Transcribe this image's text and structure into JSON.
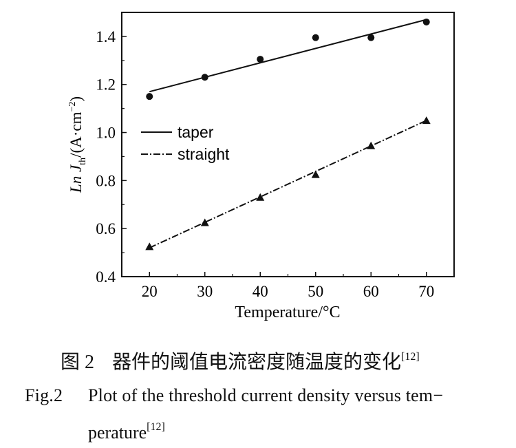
{
  "chart_data": {
    "type": "line",
    "xlabel": "Temperature/°C",
    "ylabel_main": "Ln J",
    "ylabel_sub": "th",
    "ylabel_rest": "/(A·cm",
    "ylabel_sup": "−2",
    "ylabel_close": ")",
    "xlim": [
      15,
      75
    ],
    "ylim": [
      0.4,
      1.5
    ],
    "xticks": [
      20,
      30,
      40,
      50,
      60,
      70
    ],
    "yticks": [
      "0.4",
      "0.6",
      "0.8",
      "1.0",
      "1.2",
      "1.4"
    ],
    "grid": false,
    "legend_position": "middle-left",
    "series": [
      {
        "name": "taper",
        "marker": "circle",
        "line_style": "solid",
        "points": [
          [
            20,
            1.15
          ],
          [
            30,
            1.23
          ],
          [
            40,
            1.305
          ],
          [
            50,
            1.395
          ],
          [
            60,
            1.395
          ],
          [
            70,
            1.46
          ]
        ],
        "fit": [
          [
            20,
            1.17
          ],
          [
            70,
            1.47
          ]
        ]
      },
      {
        "name": "straight",
        "marker": "triangle",
        "line_style": "dash-dot",
        "points": [
          [
            20,
            0.525
          ],
          [
            30,
            0.625
          ],
          [
            40,
            0.73
          ],
          [
            50,
            0.825
          ],
          [
            60,
            0.945
          ],
          [
            70,
            1.05
          ]
        ],
        "fit": [
          [
            20,
            0.52
          ],
          [
            70,
            1.05
          ]
        ]
      }
    ]
  },
  "caption": {
    "zh_number": "图 2",
    "zh_text": "器件的阈值电流密度随温度的变化",
    "zh_ref": "[12]",
    "en_number": "Fig.2",
    "en_text_1": "Plot of the threshold current density versus tem−",
    "en_text_2": "perature",
    "en_ref": "[12]"
  }
}
